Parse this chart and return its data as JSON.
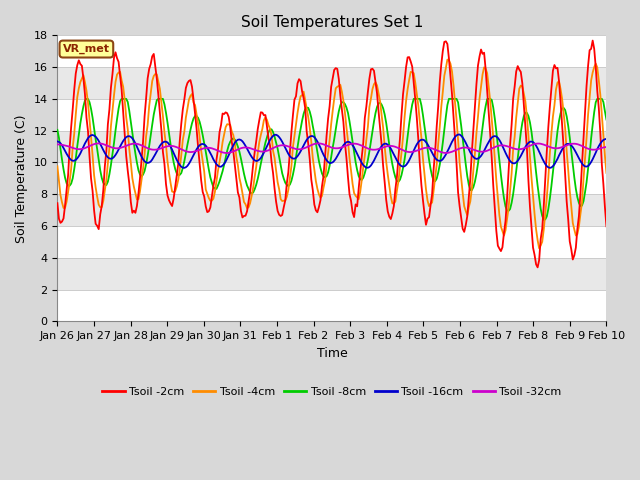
{
  "title": "Soil Temperatures Set 1",
  "xlabel": "Time",
  "ylabel": "Soil Temperature (C)",
  "ylim": [
    0,
    18
  ],
  "yticks": [
    0,
    2,
    4,
    6,
    8,
    10,
    12,
    14,
    16,
    18
  ],
  "annotation": "VR_met",
  "x_tick_labels": [
    "Jan 26",
    "Jan 27",
    "Jan 28",
    "Jan 29",
    "Jan 30",
    "Jan 31",
    "Feb 1",
    "Feb 2",
    "Feb 3",
    "Feb 4",
    "Feb 5",
    "Feb 6",
    "Feb 7",
    "Feb 8",
    "Feb 9",
    "Feb 10"
  ],
  "colors": {
    "Tsoil -2cm": "#ff0000",
    "Tsoil -4cm": "#ff8c00",
    "Tsoil -8cm": "#00cc00",
    "Tsoil -16cm": "#0000cc",
    "Tsoil -32cm": "#cc00cc"
  },
  "band_colors": [
    "#ffffff",
    "#e8e8e8"
  ],
  "fig_bg": "#d8d8d8",
  "title_fontsize": 11,
  "label_fontsize": 9,
  "tick_fontsize": 8,
  "linewidth": 1.3
}
